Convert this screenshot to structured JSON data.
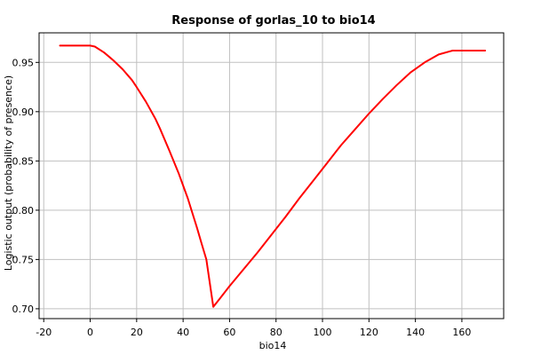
{
  "chart_data": {
    "type": "line",
    "title": "Response of gorlas_10 to bio14",
    "xlabel": "bio14",
    "ylabel": "Logistic output (probability of presence)",
    "xlim": [
      -22,
      178
    ],
    "ylim": [
      0.69,
      0.98
    ],
    "xticks": [
      -20,
      0,
      20,
      40,
      60,
      80,
      100,
      120,
      140,
      160
    ],
    "yticks": [
      0.7,
      0.75,
      0.8,
      0.85,
      0.9,
      0.95
    ],
    "grid": true,
    "colors": {
      "line": "#ff0000",
      "grid": "#c0c0c0",
      "frame": "#000000",
      "background": "#ffffff"
    },
    "series": [
      {
        "x": [
          -13,
          -7,
          0,
          2,
          6,
          10,
          14,
          18,
          20,
          24,
          28,
          30,
          34,
          38,
          42,
          46,
          48,
          50,
          53,
          56,
          60,
          66,
          72,
          78,
          84,
          90,
          96,
          102,
          108,
          114,
          120,
          126,
          132,
          138,
          144,
          150,
          156,
          160,
          164,
          170
        ],
        "y": [
          0.967,
          0.967,
          0.967,
          0.966,
          0.96,
          0.952,
          0.943,
          0.932,
          0.925,
          0.91,
          0.893,
          0.883,
          0.861,
          0.838,
          0.812,
          0.782,
          0.766,
          0.75,
          0.702,
          0.711,
          0.723,
          0.74,
          0.757,
          0.775,
          0.793,
          0.812,
          0.83,
          0.848,
          0.866,
          0.882,
          0.898,
          0.913,
          0.927,
          0.94,
          0.95,
          0.958,
          0.962,
          0.962,
          0.962,
          0.962
        ]
      }
    ]
  }
}
